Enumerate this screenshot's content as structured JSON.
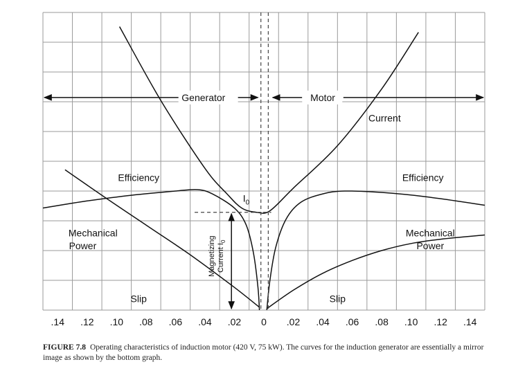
{
  "chart_data": {
    "type": "line",
    "title": "",
    "xlabel": "Slip",
    "ylabel": "",
    "x_tick_labels": [
      ".14",
      ".12",
      ".10",
      ".08",
      ".06",
      ".04",
      ".02",
      "0",
      ".02",
      ".04",
      ".06",
      ".08",
      ".10",
      ".12",
      ".14"
    ],
    "x_tick_values": [
      -0.14,
      -0.12,
      -0.1,
      -0.08,
      -0.06,
      -0.04,
      -0.02,
      0,
      0.02,
      0.04,
      0.06,
      0.08,
      0.1,
      0.12,
      0.14
    ],
    "xlim": [
      -0.15,
      0.15
    ],
    "ylim": [
      0,
      10.5
    ],
    "grid": true,
    "series": [
      {
        "name": "Current",
        "points": [
          [
            -0.098,
            10.0
          ],
          [
            -0.07,
            7.4
          ],
          [
            -0.04,
            5.0
          ],
          [
            -0.025,
            4.1
          ],
          [
            -0.015,
            3.6
          ],
          [
            -0.005,
            3.45
          ],
          [
            0.004,
            3.5
          ],
          [
            0.02,
            4.3
          ],
          [
            0.05,
            5.8
          ],
          [
            0.08,
            7.8
          ],
          [
            0.105,
            9.8
          ]
        ]
      },
      {
        "name": "Efficiency (generator)",
        "points": [
          [
            -0.15,
            3.6
          ],
          [
            -0.12,
            3.85
          ],
          [
            -0.09,
            4.05
          ],
          [
            -0.06,
            4.2
          ],
          [
            -0.045,
            4.25
          ],
          [
            -0.035,
            4.1
          ],
          [
            -0.02,
            3.6
          ],
          [
            -0.012,
            3.0
          ],
          [
            -0.007,
            2.0
          ],
          [
            -0.004,
            0.8
          ],
          [
            -0.003,
            0
          ]
        ]
      },
      {
        "name": "Efficiency (motor)",
        "points": [
          [
            0.002,
            0
          ],
          [
            0.004,
            1.0
          ],
          [
            0.008,
            2.2
          ],
          [
            0.015,
            3.2
          ],
          [
            0.025,
            3.8
          ],
          [
            0.04,
            4.1
          ],
          [
            0.055,
            4.2
          ],
          [
            0.08,
            4.15
          ],
          [
            0.11,
            4.0
          ],
          [
            0.15,
            3.7
          ]
        ]
      },
      {
        "name": "Mechanical Power (generator)",
        "points": [
          [
            -0.135,
            4.95
          ],
          [
            -0.11,
            4.05
          ],
          [
            -0.08,
            3.0
          ],
          [
            -0.05,
            1.95
          ],
          [
            -0.02,
            0.8
          ],
          [
            -0.003,
            0.1
          ]
        ]
      },
      {
        "name": "Mechanical Power (motor)",
        "points": [
          [
            0.002,
            0.05
          ],
          [
            0.02,
            0.7
          ],
          [
            0.04,
            1.3
          ],
          [
            0.06,
            1.75
          ],
          [
            0.08,
            2.1
          ],
          [
            0.1,
            2.35
          ],
          [
            0.12,
            2.5
          ],
          [
            0.15,
            2.65
          ]
        ]
      }
    ],
    "annotations": {
      "generator": "Generator",
      "motor": "Motor",
      "current": "Current",
      "efficiency_left": "Efficiency",
      "efficiency_right": "Efficiency",
      "mech_left_1": "Mechanical",
      "mech_left_2": "Power",
      "mech_right_1": "Mechanical",
      "mech_right_2": "Power",
      "slip_left": "Slip",
      "slip_right": "Slip",
      "i0": "I",
      "i0_sub": "0",
      "mag_line1": "Magnetizing",
      "mag_line2": "Current I",
      "mag_sub": "0"
    },
    "magnetizing_current_level": 3.45,
    "center_dashed_x": [
      -0.002,
      0.003
    ]
  },
  "caption": {
    "label": "FIGURE 7.8",
    "text": "Operating characteristics of induction motor (420 V, 75 kW). The curves for the induction generator are essentially a mirror image as shown by the bottom graph."
  }
}
